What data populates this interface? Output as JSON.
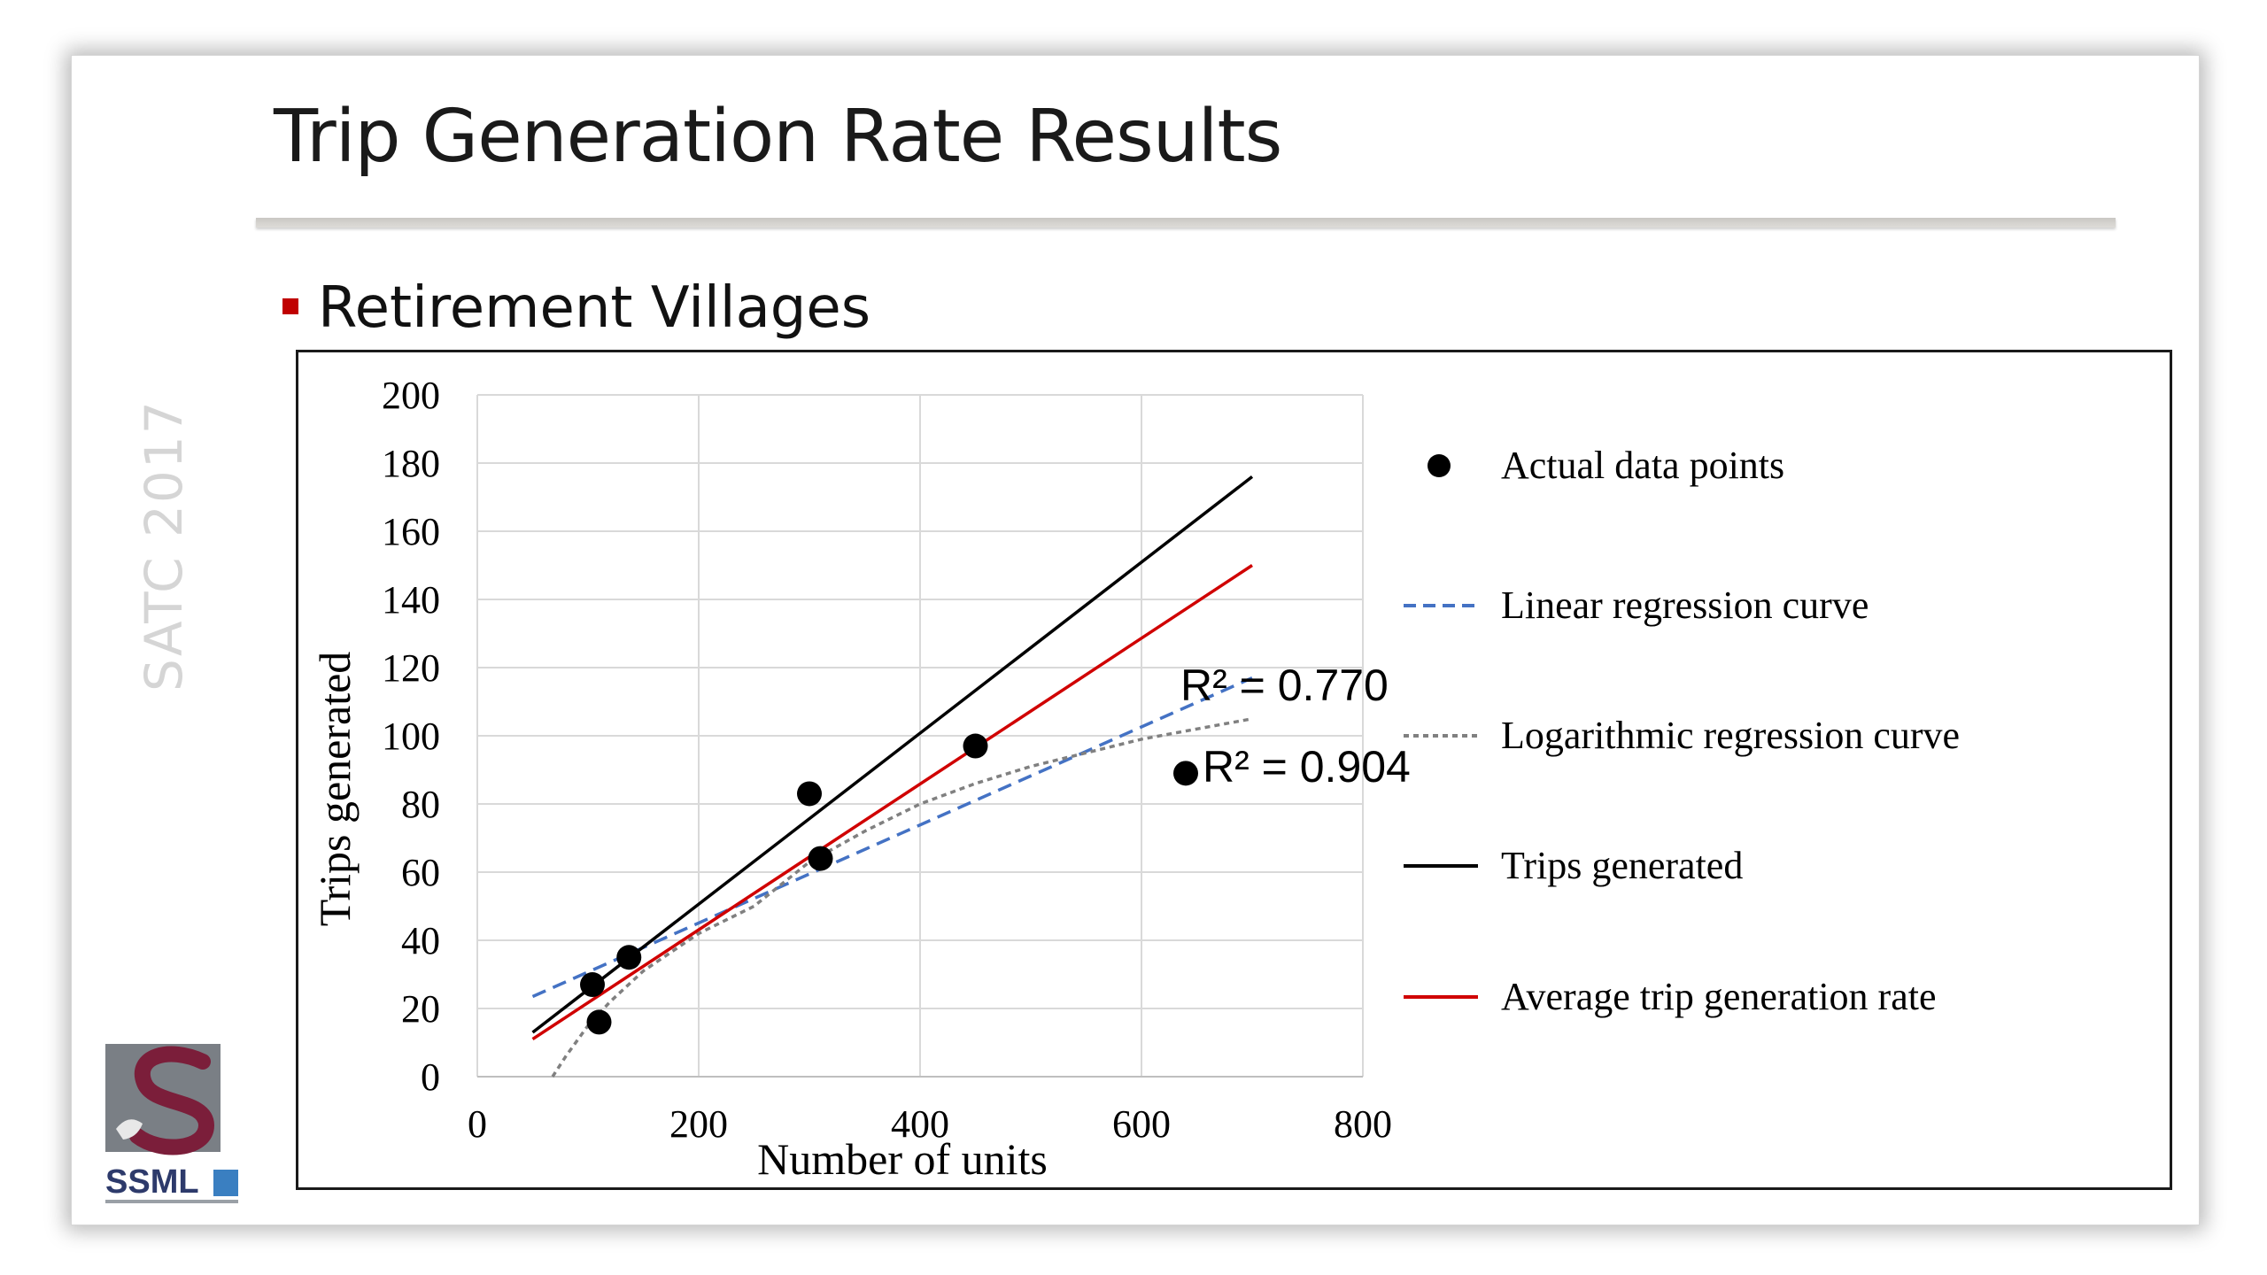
{
  "slide": {
    "title": "Trip Generation Rate Results",
    "bullet": "Retirement Villages",
    "side_label": "SATC 2017",
    "logo_text": "SSML"
  },
  "colors": {
    "accent_red": "#c00000",
    "actual_points": "#000000",
    "linear": "#4472c4",
    "logarithmic": "#808080",
    "trips": "#000000",
    "average": "#d00000"
  },
  "chart_data": {
    "type": "scatter",
    "xlabel": "Number of units",
    "ylabel": "Trips generated",
    "xlim": [
      0,
      800
    ],
    "ylim": [
      0,
      200
    ],
    "xticks": [
      0,
      200,
      400,
      600,
      800
    ],
    "yticks": [
      0,
      20,
      40,
      60,
      80,
      100,
      120,
      140,
      160,
      180,
      200
    ],
    "grid": true,
    "legend_position": "right",
    "points": {
      "name": "Actual data points",
      "x": [
        104,
        110,
        137,
        300,
        310,
        450,
        640
      ],
      "y": [
        27,
        16,
        35,
        83,
        64,
        97,
        89
      ]
    },
    "series": [
      {
        "name": "Linear regression curve",
        "style": "dashed",
        "x": [
          50,
          700
        ],
        "y": [
          23.5,
          117
        ]
      },
      {
        "name": "Logarithmic regression curve",
        "style": "dotted",
        "x": [
          68,
          80,
          100,
          120,
          150,
          200,
          250,
          300,
          350,
          400,
          450,
          500,
          550,
          600,
          650,
          700
        ],
        "y": [
          0,
          6,
          15,
          22,
          31,
          42,
          50,
          63,
          72,
          80,
          86,
          91,
          95,
          99,
          102,
          105
        ]
      },
      {
        "name": "Trips generated",
        "style": "solid",
        "x": [
          50,
          700
        ],
        "y": [
          13,
          176
        ]
      },
      {
        "name": "Average trip generation rate",
        "style": "solid",
        "x": [
          50,
          700
        ],
        "y": [
          11,
          150
        ]
      }
    ],
    "annotations": [
      {
        "text": "R² = 0.770",
        "x": 640,
        "y": 112
      },
      {
        "text": "R² = 0.904",
        "x": 660,
        "y": 88
      }
    ]
  }
}
